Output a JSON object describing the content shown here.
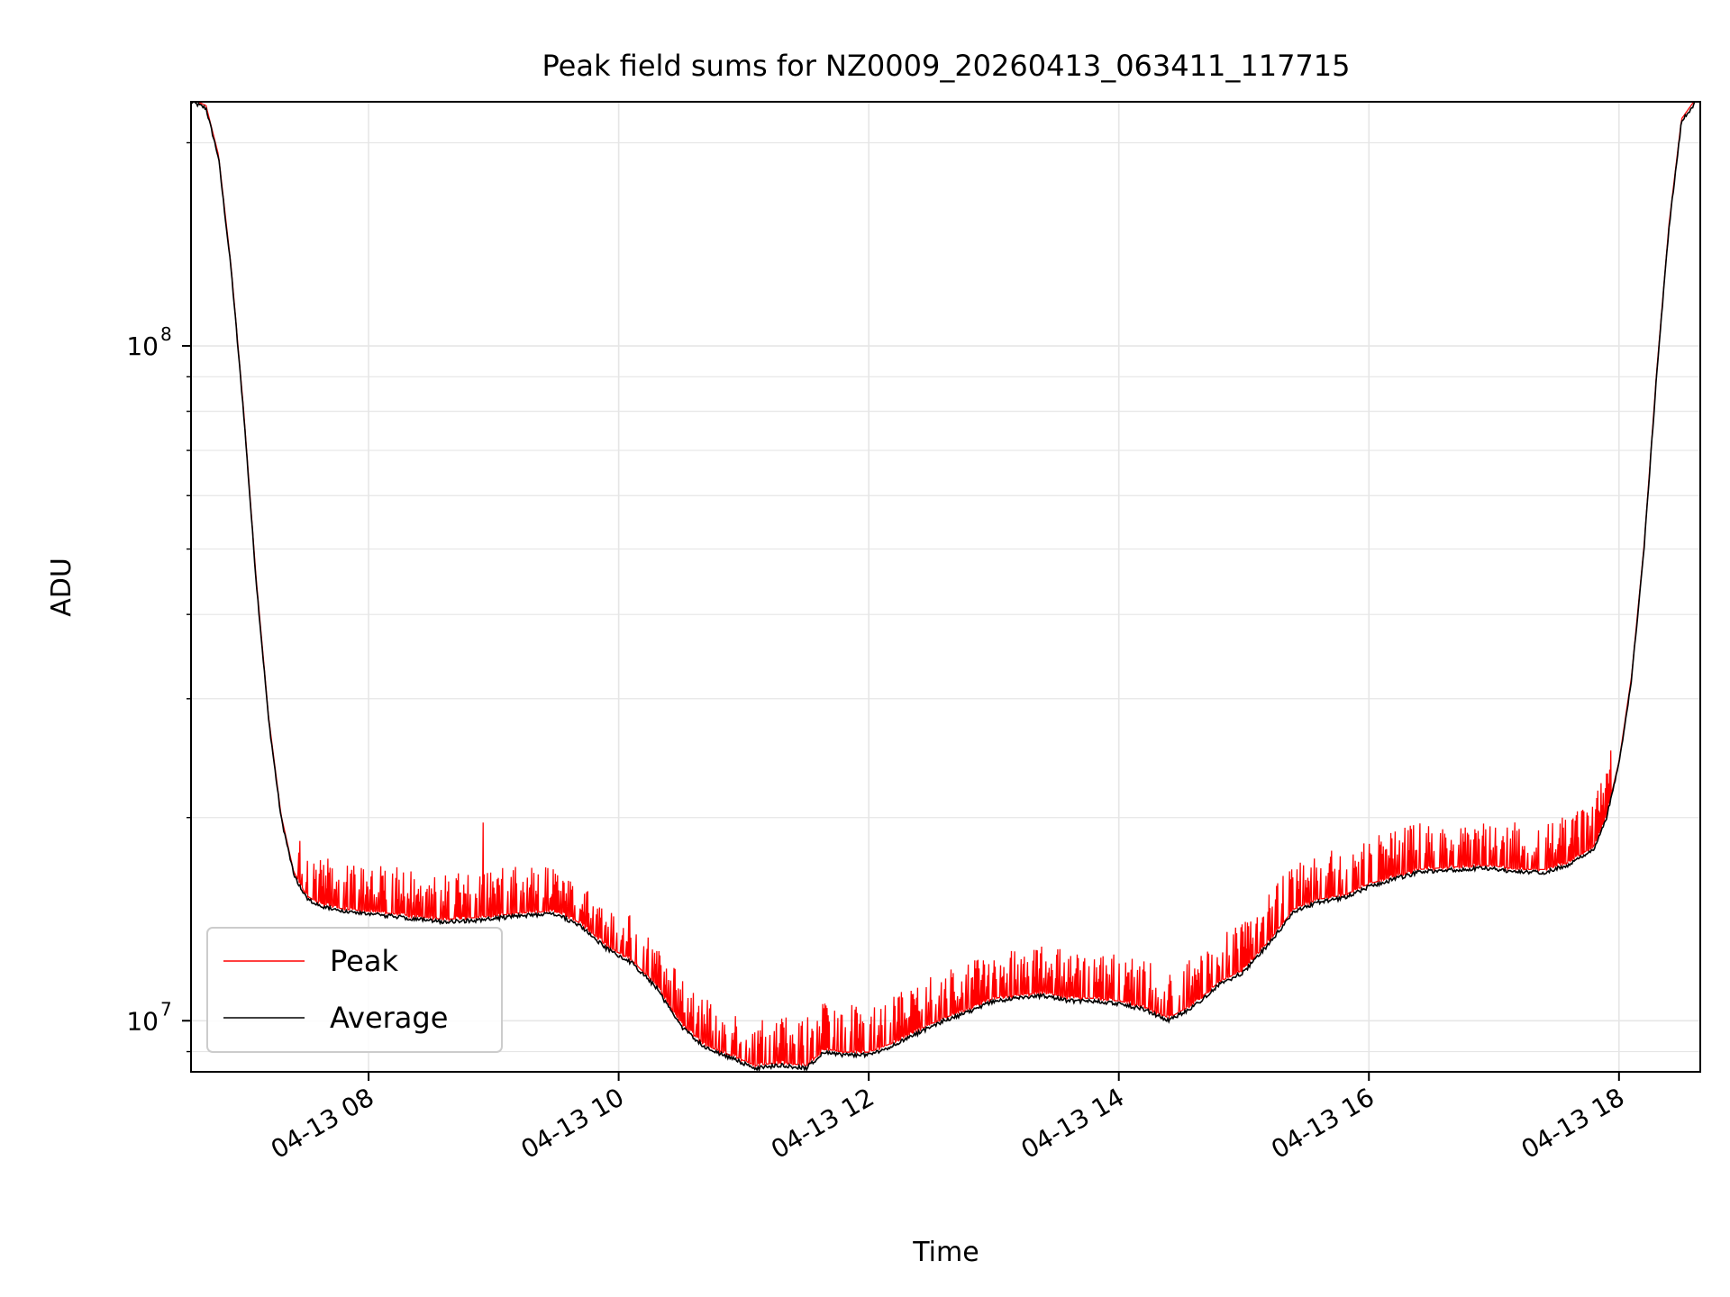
{
  "chart_data": {
    "type": "line",
    "title": "Peak field sums for NZ0009_20260413_063411_117715",
    "xlabel": "Time",
    "ylabel": "ADU",
    "y_scale": "log",
    "ylim": [
      8400000,
      230000000
    ],
    "xlim_hours": [
      6.58,
      18.65
    ],
    "grid": true,
    "legend_position": "lower-left",
    "x_ticks": [
      {
        "hour": 8,
        "label": "04-13 08"
      },
      {
        "hour": 10,
        "label": "04-13 10"
      },
      {
        "hour": 12,
        "label": "04-13 12"
      },
      {
        "hour": 14,
        "label": "04-13 14"
      },
      {
        "hour": 16,
        "label": "04-13 16"
      },
      {
        "hour": 18,
        "label": "04-13 18"
      }
    ],
    "y_major_ticks": [
      {
        "value": 10000000,
        "base": "10",
        "exp": "7"
      },
      {
        "value": 100000000,
        "base": "10",
        "exp": "8"
      }
    ],
    "series": [
      {
        "name": "Peak",
        "color": "#ff0000",
        "note": "spiky envelope above Average, tips ~8-15% higher"
      },
      {
        "name": "Average",
        "color": "#000000",
        "x_hours": [
          6.58,
          6.7,
          6.8,
          6.9,
          7.0,
          7.1,
          7.2,
          7.3,
          7.4,
          7.5,
          7.6,
          7.8,
          8.0,
          8.3,
          8.6,
          8.9,
          9.2,
          9.5,
          9.7,
          9.9,
          10.1,
          10.3,
          10.5,
          10.7,
          10.9,
          11.1,
          11.3,
          11.5,
          11.65,
          11.8,
          12.0,
          12.2,
          12.4,
          12.6,
          12.8,
          13.0,
          13.2,
          13.4,
          13.6,
          13.8,
          14.0,
          14.2,
          14.4,
          14.6,
          14.8,
          15.0,
          15.2,
          15.4,
          15.6,
          15.8,
          16.0,
          16.2,
          16.4,
          16.6,
          16.8,
          17.0,
          17.2,
          17.4,
          17.6,
          17.8,
          17.9,
          18.0,
          18.1,
          18.2,
          18.3,
          18.4,
          18.5,
          18.65
        ],
        "y": [
          230000000,
          225000000,
          190000000,
          130000000,
          80000000,
          45000000,
          28000000,
          20000000,
          16500000,
          15200000,
          14800000,
          14500000,
          14400000,
          14200000,
          14000000,
          14100000,
          14300000,
          14400000,
          13800000,
          12800000,
          12200000,
          11200000,
          9800000,
          9100000,
          8800000,
          8500000,
          8600000,
          8500000,
          9000000,
          8900000,
          8900000,
          9200000,
          9600000,
          10000000,
          10300000,
          10700000,
          10800000,
          10900000,
          10700000,
          10700000,
          10600000,
          10400000,
          10000000,
          10500000,
          11300000,
          11800000,
          13000000,
          14500000,
          15000000,
          15200000,
          15800000,
          16200000,
          16600000,
          16700000,
          16800000,
          16800000,
          16600000,
          16600000,
          17000000,
          18000000,
          20000000,
          24000000,
          32000000,
          50000000,
          90000000,
          150000000,
          215000000,
          235000000
        ]
      }
    ]
  }
}
